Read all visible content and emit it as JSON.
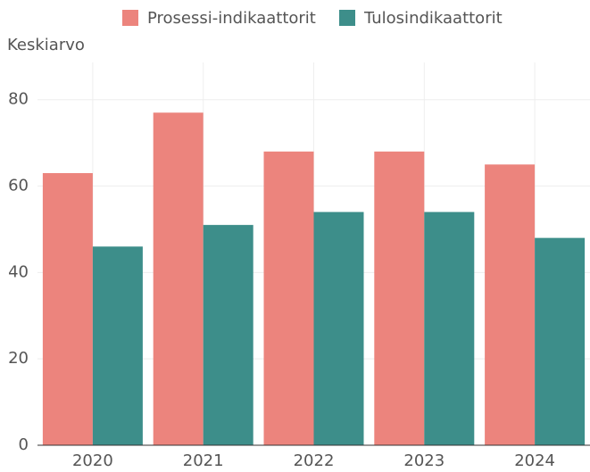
{
  "chart_data": {
    "type": "bar",
    "y_label": "Keskiarvo",
    "categories": [
      "2020",
      "2021",
      "2022",
      "2023",
      "2024"
    ],
    "series": [
      {
        "name": "Prosessi-indikaattorit",
        "color": "#ec847d",
        "values": [
          63,
          77,
          68,
          68,
          65
        ]
      },
      {
        "name": "Tulosindikaattorit",
        "color": "#3d8e8a",
        "values": [
          46,
          51,
          54,
          54,
          48
        ]
      }
    ],
    "ylim": [
      0,
      88
    ],
    "yticks": [
      0,
      20,
      40,
      60,
      80
    ],
    "grid": true,
    "legend": "top"
  }
}
